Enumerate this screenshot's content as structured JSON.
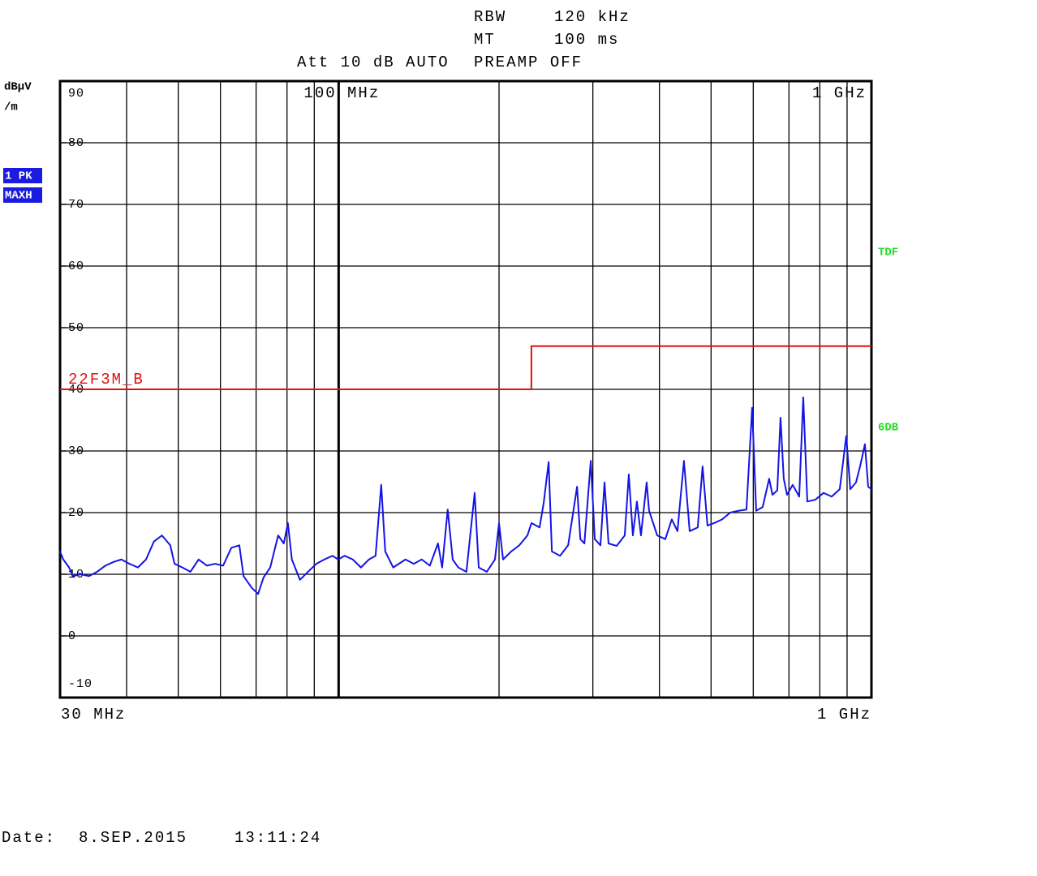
{
  "chart_data": {
    "type": "line",
    "header": {
      "rbw_label": "RBW",
      "rbw": "120 kHz",
      "mt_label": "MT",
      "mt": "100 ms",
      "att": "Att 10 dB AUTO",
      "preamp": "PREAMP OFF"
    },
    "y_unit": [
      "dBµV",
      "/m"
    ],
    "trace_badges": [
      "1 PK",
      "MAXH"
    ],
    "side_labels": [
      "TDF",
      "6DB"
    ],
    "start_label": "30 MHz",
    "stop_label": "1 GHz",
    "date_label": "Date:",
    "date": "8.SEP.2015",
    "time": "13:11:24",
    "log_x": true,
    "xlim": [
      30,
      1000
    ],
    "xticks": [
      {
        "value": 100,
        "label": "100 MHz"
      },
      {
        "value": 1000,
        "label": "1 GHz"
      }
    ],
    "xminor": [
      40,
      50,
      60,
      70,
      80,
      90,
      200,
      300,
      400,
      500,
      600,
      700,
      800,
      900
    ],
    "ylim": [
      -10,
      90
    ],
    "yticks": [
      90,
      80,
      70,
      60,
      50,
      40,
      30,
      20,
      10,
      0,
      -10
    ],
    "grid": true,
    "limit": {
      "name": "22F3M_B",
      "color": "#e01010",
      "x": [
        30,
        230,
        230,
        1000
      ],
      "values": [
        40,
        40,
        47,
        47
      ]
    },
    "series": [
      {
        "name": "1 PK",
        "color": "#1414e6",
        "x": [
          30,
          30.42,
          31.2,
          31.7,
          32.8,
          34.0,
          35.2,
          36.5,
          37.8,
          39.1,
          40.5,
          42.0,
          43.5,
          45.0,
          46.6,
          48.3,
          49.2,
          50.9,
          52.7,
          54.6,
          56.6,
          58.6,
          60.7,
          62.9,
          65.1,
          66.3,
          68.7,
          70.6,
          72.3,
          74.4,
          77.0,
          78.9,
          80.3,
          81.7,
          84.6,
          87.6,
          90.8,
          94.0,
          97.4,
          99.8,
          102.6,
          106.3,
          110.1,
          114.0,
          117.3,
          120.2,
          122.3,
          126.6,
          133.5,
          138.3,
          143.2,
          148.3,
          153.6,
          156.4,
          160.2,
          163.7,
          167.7,
          173.7,
          180.0,
          183.2,
          189.7,
          196.5,
          200.0,
          203.5,
          210.8,
          218.3,
          226.1,
          230.1,
          238.3,
          242.6,
          247.8,
          251.3,
          260.3,
          269.6,
          280.2,
          284.2,
          289.2,
          297.3,
          302.5,
          310.0,
          315.5,
          321.0,
          332.5,
          344.3,
          350.4,
          356.6,
          362.9,
          369.3,
          378.5,
          382.5,
          396.2,
          410.3,
          421.9,
          432.4,
          444.7,
          455.8,
          472.0,
          482.0,
          492.3,
          506.3,
          524.4,
          543.1,
          562.4,
          582.6,
          597.1,
          607.6,
          624.9,
          642.7,
          651.8,
          665.6,
          675.0,
          684.5,
          694.2,
          711.5,
          731.8,
          744.7,
          757.9,
          784.9,
          812.9,
          841.9,
          871.9,
          896.7,
          912.6,
          935.3,
          951.9,
          972.1,
          985.9,
          1000
        ],
        "values": [
          13.7,
          12.4,
          11.1,
          9.7,
          10.0,
          9.7,
          10.4,
          11.4,
          12.0,
          12.4,
          11.7,
          11.1,
          12.4,
          15.3,
          16.3,
          14.7,
          11.7,
          11.1,
          10.4,
          12.4,
          11.4,
          11.7,
          11.4,
          14.3,
          14.7,
          9.7,
          7.8,
          6.8,
          9.5,
          11.1,
          16.3,
          15.0,
          18.3,
          12.4,
          9.1,
          10.4,
          11.7,
          12.4,
          13.0,
          12.4,
          13.0,
          12.4,
          11.1,
          12.4,
          13.0,
          24.5,
          13.7,
          11.1,
          12.4,
          11.7,
          12.4,
          11.4,
          15.0,
          11.1,
          20.5,
          12.4,
          11.1,
          10.4,
          23.2,
          11.1,
          10.4,
          12.4,
          18.3,
          12.4,
          13.7,
          14.7,
          16.3,
          18.3,
          17.6,
          21.6,
          28.2,
          13.7,
          13.0,
          14.7,
          24.2,
          15.7,
          15.0,
          28.4,
          15.7,
          14.7,
          24.9,
          15.0,
          14.6,
          16.3,
          26.2,
          16.3,
          21.8,
          16.3,
          24.9,
          20.3,
          16.3,
          15.7,
          18.9,
          17.0,
          28.4,
          17.0,
          17.6,
          27.5,
          17.9,
          18.3,
          18.9,
          20.0,
          20.3,
          20.5,
          37.0,
          20.3,
          20.9,
          25.5,
          22.9,
          23.6,
          35.4,
          25.5,
          22.9,
          24.5,
          22.6,
          38.7,
          21.8,
          22.1,
          23.2,
          22.6,
          23.8,
          32.4,
          23.8,
          24.9,
          27.5,
          31.1,
          24.2,
          23.8
        ]
      }
    ]
  }
}
